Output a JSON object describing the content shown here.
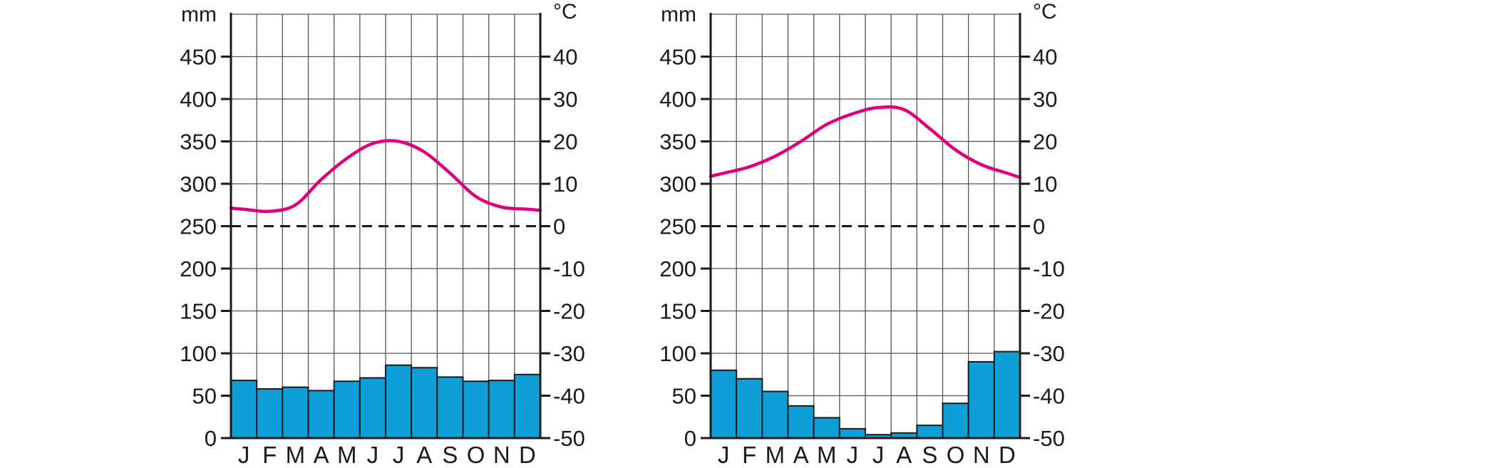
{
  "chart_data": [
    {
      "type": "bar",
      "title": "",
      "categories": [
        "J",
        "F",
        "M",
        "A",
        "M",
        "J",
        "J",
        "A",
        "S",
        "O",
        "N",
        "D"
      ],
      "series": [
        {
          "kind": "bar",
          "axis": "left",
          "values": [
            68,
            58,
            60,
            56,
            67,
            71,
            86,
            83,
            72,
            67,
            68,
            75
          ]
        },
        {
          "kind": "line",
          "axis": "right",
          "values": [
            4,
            3.5,
            5,
            11,
            16,
            19.5,
            20,
            17.5,
            12.5,
            7,
            4.5,
            4
          ]
        }
      ],
      "left_axis": {
        "label": "mm",
        "ticks": [
          "0",
          "50",
          "100",
          "150",
          "200",
          "250",
          "300",
          "350",
          "400",
          "450"
        ],
        "range": [
          0,
          500
        ]
      },
      "right_axis": {
        "label": "°C",
        "ticks": [
          "-50",
          "-40",
          "-30",
          "-20",
          "-10",
          "0",
          "10",
          "20",
          "30",
          "40"
        ],
        "range": [
          -50,
          50
        ]
      },
      "zero_line": {
        "value": 0,
        "style": "dashed"
      },
      "grid": true,
      "colors": {
        "bars": "#0e9fd8",
        "line": "#e0007b"
      }
    },
    {
      "type": "bar",
      "title": "",
      "categories": [
        "J",
        "F",
        "M",
        "A",
        "M",
        "J",
        "J",
        "A",
        "S",
        "O",
        "N",
        "D"
      ],
      "series": [
        {
          "kind": "bar",
          "axis": "left",
          "values": [
            80,
            70,
            55,
            38,
            24,
            11,
            4,
            6,
            15,
            41,
            90,
            102
          ]
        },
        {
          "kind": "line",
          "axis": "right",
          "values": [
            12.5,
            14,
            16.5,
            20,
            24,
            26.5,
            28,
            27.5,
            23,
            18,
            14.5,
            12.5
          ]
        }
      ],
      "left_axis": {
        "label": "mm",
        "ticks": [
          "0",
          "50",
          "100",
          "150",
          "200",
          "250",
          "300",
          "350",
          "400",
          "450"
        ],
        "range": [
          0,
          500
        ]
      },
      "right_axis": {
        "label": "°C",
        "ticks": [
          "-50",
          "-40",
          "-30",
          "-20",
          "-10",
          "0",
          "10",
          "20",
          "30",
          "40"
        ],
        "range": [
          -50,
          50
        ]
      },
      "zero_line": {
        "value": 0,
        "style": "dashed"
      },
      "grid": true,
      "colors": {
        "bars": "#0e9fd8",
        "line": "#e0007b"
      }
    }
  ]
}
